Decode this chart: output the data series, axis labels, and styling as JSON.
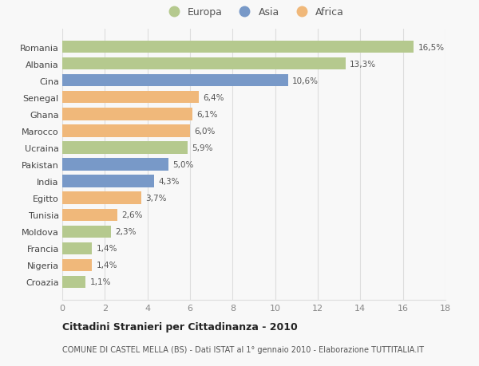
{
  "categories": [
    "Romania",
    "Albania",
    "Cina",
    "Senegal",
    "Ghana",
    "Marocco",
    "Ucraina",
    "Pakistan",
    "India",
    "Egitto",
    "Tunisia",
    "Moldova",
    "Francia",
    "Nigeria",
    "Croazia"
  ],
  "values": [
    16.5,
    13.3,
    10.6,
    6.4,
    6.1,
    6.0,
    5.9,
    5.0,
    4.3,
    3.7,
    2.6,
    2.3,
    1.4,
    1.4,
    1.1
  ],
  "labels": [
    "16,5%",
    "13,3%",
    "10,6%",
    "6,4%",
    "6,1%",
    "6,0%",
    "5,9%",
    "5,0%",
    "4,3%",
    "3,7%",
    "2,6%",
    "2,3%",
    "1,4%",
    "1,4%",
    "1,1%"
  ],
  "continents": [
    "Europa",
    "Europa",
    "Asia",
    "Africa",
    "Africa",
    "Africa",
    "Europa",
    "Asia",
    "Asia",
    "Africa",
    "Africa",
    "Europa",
    "Europa",
    "Africa",
    "Europa"
  ],
  "colors": {
    "Europa": "#b5c98e",
    "Asia": "#7899c8",
    "Africa": "#f0b87a"
  },
  "xlim": [
    0,
    18
  ],
  "xticks": [
    0,
    2,
    4,
    6,
    8,
    10,
    12,
    14,
    16,
    18
  ],
  "title": "Cittadini Stranieri per Cittadinanza - 2010",
  "subtitle": "COMUNE DI CASTEL MELLA (BS) - Dati ISTAT al 1° gennaio 2010 - Elaborazione TUTTITALIA.IT",
  "background_color": "#f8f8f8",
  "grid_color": "#dddddd",
  "bar_height": 0.72
}
